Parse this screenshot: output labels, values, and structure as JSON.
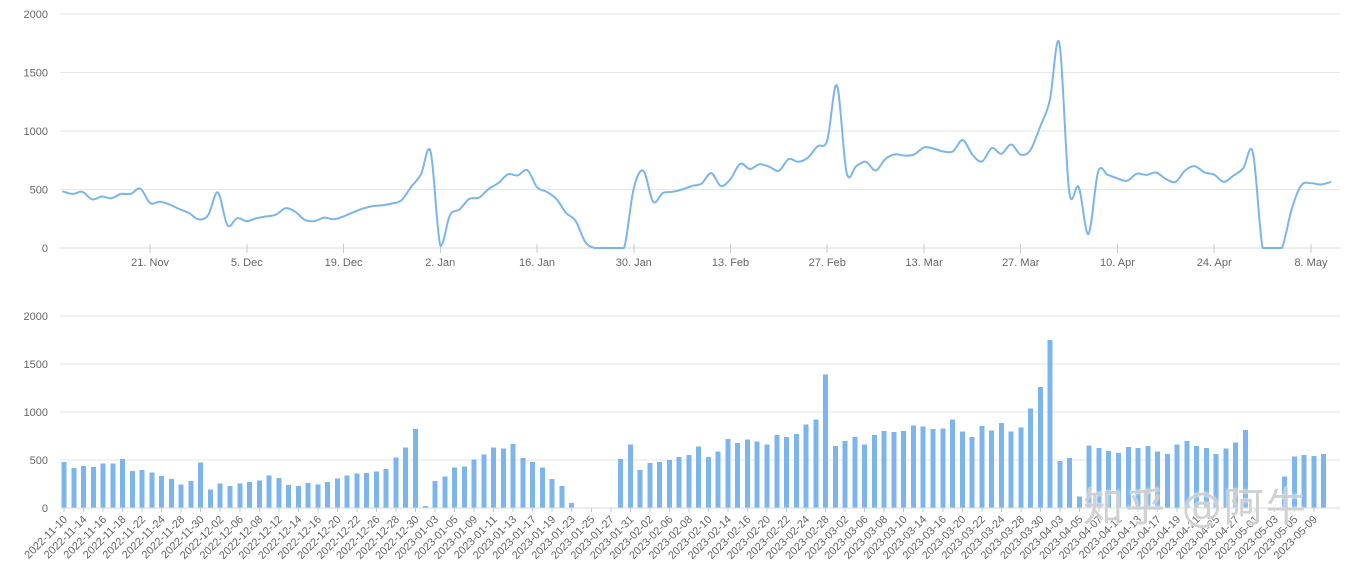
{
  "watermark": {
    "text": "知乎 @阿牛"
  },
  "palette": {
    "series": "#7cb5ec",
    "grid": "#e6e6e6",
    "axis": "#d4d8de",
    "tick": "#c3c9d0",
    "label_color": "#666666",
    "background": "#ffffff"
  },
  "chart_data": [
    {
      "type": "line",
      "title": "",
      "xlabel": "",
      "ylabel": "",
      "ylim": [
        0,
        2000
      ],
      "yticks": [
        0,
        500,
        1000,
        1500,
        2000
      ],
      "grid": true,
      "legend": "none",
      "xtick_labels": [
        {
          "i": 9,
          "label": "21. Nov"
        },
        {
          "i": 19,
          "label": "5. Dec"
        },
        {
          "i": 29,
          "label": "19. Dec"
        },
        {
          "i": 39,
          "label": "2. Jan"
        },
        {
          "i": 49,
          "label": "16. Jan"
        },
        {
          "i": 59,
          "label": "30. Jan"
        },
        {
          "i": 69,
          "label": "13. Feb"
        },
        {
          "i": 79,
          "label": "27. Feb"
        },
        {
          "i": 89,
          "label": "13. Mar"
        },
        {
          "i": 99,
          "label": "27. Mar"
        },
        {
          "i": 109,
          "label": "10. Apr"
        },
        {
          "i": 119,
          "label": "24. Apr"
        },
        {
          "i": 129,
          "label": "8. May"
        }
      ],
      "x": [
        "2022-11-08",
        "2022-11-09",
        "2022-11-10",
        "2022-11-11",
        "2022-11-14",
        "2022-11-15",
        "2022-11-16",
        "2022-11-17",
        "2022-11-18",
        "2022-11-21",
        "2022-11-22",
        "2022-11-23",
        "2022-11-24",
        "2022-11-25",
        "2022-11-28",
        "2022-11-29",
        "2022-11-30",
        "2022-12-01",
        "2022-12-02",
        "2022-12-05",
        "2022-12-06",
        "2022-12-07",
        "2022-12-08",
        "2022-12-09",
        "2022-12-12",
        "2022-12-13",
        "2022-12-14",
        "2022-12-15",
        "2022-12-16",
        "2022-12-19",
        "2022-12-20",
        "2022-12-21",
        "2022-12-22",
        "2022-12-23",
        "2022-12-26",
        "2022-12-27",
        "2022-12-28",
        "2022-12-29",
        "2022-12-30",
        "2023-01-02",
        "2023-01-03",
        "2023-01-04",
        "2023-01-05",
        "2023-01-06",
        "2023-01-09",
        "2023-01-10",
        "2023-01-11",
        "2023-01-12",
        "2023-01-13",
        "2023-01-16",
        "2023-01-17",
        "2023-01-18",
        "2023-01-19",
        "2023-01-20",
        "2023-01-23",
        "2023-01-24",
        "2023-01-25",
        "2023-01-26",
        "2023-01-27",
        "2023-01-30",
        "2023-01-31",
        "2023-02-01",
        "2023-02-02",
        "2023-02-03",
        "2023-02-06",
        "2023-02-07",
        "2023-02-08",
        "2023-02-09",
        "2023-02-10",
        "2023-02-13",
        "2023-02-14",
        "2023-02-15",
        "2023-02-16",
        "2023-02-17",
        "2023-02-20",
        "2023-02-21",
        "2023-02-22",
        "2023-02-23",
        "2023-02-24",
        "2023-02-27",
        "2023-02-28",
        "2023-03-01",
        "2023-03-02",
        "2023-03-03",
        "2023-03-06",
        "2023-03-07",
        "2023-03-08",
        "2023-03-09",
        "2023-03-10",
        "2023-03-13",
        "2023-03-14",
        "2023-03-15",
        "2023-03-16",
        "2023-03-17",
        "2023-03-20",
        "2023-03-21",
        "2023-03-22",
        "2023-03-23",
        "2023-03-24",
        "2023-03-27",
        "2023-03-28",
        "2023-03-29",
        "2023-03-30",
        "2023-03-31",
        "2023-04-03",
        "2023-04-04",
        "2023-04-05",
        "2023-04-06",
        "2023-04-07",
        "2023-04-10",
        "2023-04-11",
        "2023-04-12",
        "2023-04-13",
        "2023-04-14",
        "2023-04-17",
        "2023-04-18",
        "2023-04-19",
        "2023-04-20",
        "2023-04-21",
        "2023-04-24",
        "2023-04-25",
        "2023-04-26",
        "2023-04-27",
        "2023-04-28",
        "2023-05-01",
        "2023-05-02",
        "2023-05-03",
        "2023-05-04",
        "2023-05-05",
        "2023-05-08",
        "2023-05-09",
        "2023-05-10"
      ],
      "values": [
        483,
        462,
        480,
        415,
        440,
        425,
        462,
        462,
        508,
        385,
        395,
        372,
        333,
        300,
        245,
        280,
        475,
        195,
        255,
        230,
        255,
        270,
        285,
        340,
        310,
        240,
        230,
        260,
        245,
        270,
        305,
        337,
        358,
        365,
        380,
        408,
        525,
        628,
        823,
        20,
        280,
        330,
        420,
        430,
        505,
        555,
        630,
        620,
        665,
        520,
        480,
        420,
        300,
        230,
        50,
        0,
        0,
        0,
        0,
        510,
        660,
        395,
        470,
        480,
        500,
        530,
        550,
        640,
        530,
        590,
        720,
        675,
        715,
        695,
        660,
        760,
        737,
        772,
        870,
        920,
        1390,
        645,
        700,
        737,
        662,
        760,
        800,
        790,
        800,
        860,
        850,
        825,
        826,
        923,
        798,
        739,
        854,
        805,
        885,
        798,
        836,
        1035,
        1260,
        1750,
        490,
        520,
        120,
        650,
        625,
        595,
        575,
        635,
        625,
        645,
        590,
        565,
        663,
        699,
        645,
        627,
        565,
        620,
        681,
        815,
        0,
        0,
        0,
        330,
        536,
        554,
        543,
        562
      ]
    },
    {
      "type": "bar",
      "title": "",
      "xlabel": "",
      "ylabel": "",
      "ylim": [
        0,
        2000
      ],
      "yticks": [
        0,
        500,
        1000,
        1500,
        2000
      ],
      "grid": true,
      "legend": "none",
      "label_every": 2,
      "categories": [
        "2022-11-10",
        "2022-11-11",
        "2022-11-14",
        "2022-11-15",
        "2022-11-16",
        "2022-11-17",
        "2022-11-18",
        "2022-11-21",
        "2022-11-22",
        "2022-11-23",
        "2022-11-24",
        "2022-11-25",
        "2022-11-28",
        "2022-11-29",
        "2022-11-30",
        "2022-12-01",
        "2022-12-02",
        "2022-12-05",
        "2022-12-06",
        "2022-12-07",
        "2022-12-08",
        "2022-12-09",
        "2022-12-12",
        "2022-12-13",
        "2022-12-14",
        "2022-12-15",
        "2022-12-16",
        "2022-12-19",
        "2022-12-20",
        "2022-12-21",
        "2022-12-22",
        "2022-12-23",
        "2022-12-26",
        "2022-12-27",
        "2022-12-28",
        "2022-12-29",
        "2022-12-30",
        "2023-01-02",
        "2023-01-03",
        "2023-01-04",
        "2023-01-05",
        "2023-01-06",
        "2023-01-09",
        "2023-01-10",
        "2023-01-11",
        "2023-01-12",
        "2023-01-13",
        "2023-01-16",
        "2023-01-17",
        "2023-01-18",
        "2023-01-19",
        "2023-01-20",
        "2023-01-23",
        "2023-01-24",
        "2023-01-25",
        "2023-01-26",
        "2023-01-27",
        "2023-01-30",
        "2023-01-31",
        "2023-02-01",
        "2023-02-02",
        "2023-02-03",
        "2023-02-06",
        "2023-02-07",
        "2023-02-08",
        "2023-02-09",
        "2023-02-10",
        "2023-02-13",
        "2023-02-14",
        "2023-02-15",
        "2023-02-16",
        "2023-02-17",
        "2023-02-20",
        "2023-02-21",
        "2023-02-22",
        "2023-02-23",
        "2023-02-24",
        "2023-02-27",
        "2023-02-28",
        "2023-03-01",
        "2023-03-02",
        "2023-03-03",
        "2023-03-06",
        "2023-03-07",
        "2023-03-08",
        "2023-03-09",
        "2023-03-10",
        "2023-03-13",
        "2023-03-14",
        "2023-03-15",
        "2023-03-16",
        "2023-03-17",
        "2023-03-20",
        "2023-03-21",
        "2023-03-22",
        "2023-03-23",
        "2023-03-24",
        "2023-03-27",
        "2023-03-28",
        "2023-03-29",
        "2023-03-30",
        "2023-03-31",
        "2023-04-03",
        "2023-04-04",
        "2023-04-05",
        "2023-04-06",
        "2023-04-07",
        "2023-04-10",
        "2023-04-11",
        "2023-04-12",
        "2023-04-13",
        "2023-04-14",
        "2023-04-17",
        "2023-04-18",
        "2023-04-19",
        "2023-04-20",
        "2023-04-21",
        "2023-04-24",
        "2023-04-25",
        "2023-04-26",
        "2023-04-27",
        "2023-04-28",
        "2023-05-01",
        "2023-05-02",
        "2023-05-03",
        "2023-05-04",
        "2023-05-05",
        "2023-05-08",
        "2023-05-09",
        "2023-05-10"
      ],
      "values": [
        480,
        415,
        440,
        425,
        462,
        462,
        508,
        385,
        395,
        372,
        333,
        300,
        245,
        280,
        475,
        195,
        255,
        230,
        255,
        270,
        285,
        340,
        310,
        240,
        230,
        260,
        245,
        270,
        305,
        337,
        358,
        365,
        380,
        408,
        525,
        628,
        823,
        20,
        280,
        330,
        420,
        430,
        505,
        555,
        630,
        620,
        665,
        520,
        480,
        420,
        300,
        230,
        50,
        0,
        0,
        0,
        0,
        510,
        660,
        395,
        470,
        480,
        500,
        530,
        550,
        640,
        530,
        590,
        720,
        675,
        715,
        695,
        660,
        760,
        737,
        772,
        870,
        920,
        1390,
        645,
        700,
        737,
        662,
        760,
        800,
        790,
        800,
        860,
        850,
        825,
        826,
        923,
        798,
        739,
        854,
        805,
        885,
        798,
        836,
        1035,
        1260,
        1750,
        490,
        520,
        120,
        650,
        625,
        595,
        575,
        635,
        625,
        645,
        590,
        565,
        663,
        699,
        645,
        627,
        565,
        620,
        681,
        815,
        0,
        0,
        0,
        330,
        536,
        554,
        543,
        562
      ]
    }
  ]
}
